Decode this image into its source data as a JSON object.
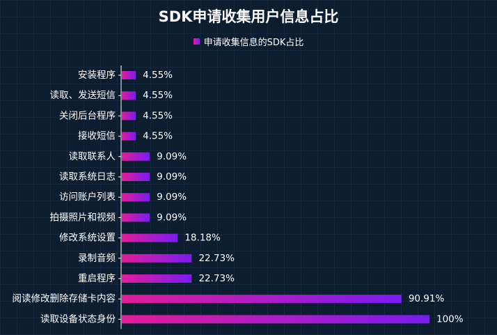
{
  "chart_data": {
    "type": "bar",
    "orientation": "horizontal",
    "title": "SDK申请收集用户信息占比",
    "legend_position": "top",
    "series": [
      {
        "name": "申请收集信息的SDK占比",
        "values": [
          4.55,
          4.55,
          4.55,
          4.55,
          9.09,
          9.09,
          9.09,
          9.09,
          18.18,
          22.73,
          22.73,
          90.91,
          100
        ]
      }
    ],
    "categories": [
      "安装程序",
      "读取、发送短信",
      "关闭后台程序",
      "接收短信",
      "读取联系人",
      "读取系统日志",
      "访问账户列表",
      "拍摄照片和视频",
      "修改系统设置",
      "录制音频",
      "重启程序",
      "阅读修改删除存储卡内容",
      "读取设备状态身份"
    ],
    "value_labels": [
      "4.55%",
      "4.55%",
      "4.55%",
      "4.55%",
      "9.09%",
      "9.09%",
      "9.09%",
      "9.09%",
      "18.18%",
      "22.73%",
      "22.73%",
      "90.91%",
      "100%"
    ],
    "xlim": [
      0,
      100
    ],
    "grid": false,
    "colors": {
      "bar_start": "#e21d98",
      "bar_end": "#7a1cf0",
      "axis": "#ffffff",
      "background": "#0c1d30"
    }
  }
}
